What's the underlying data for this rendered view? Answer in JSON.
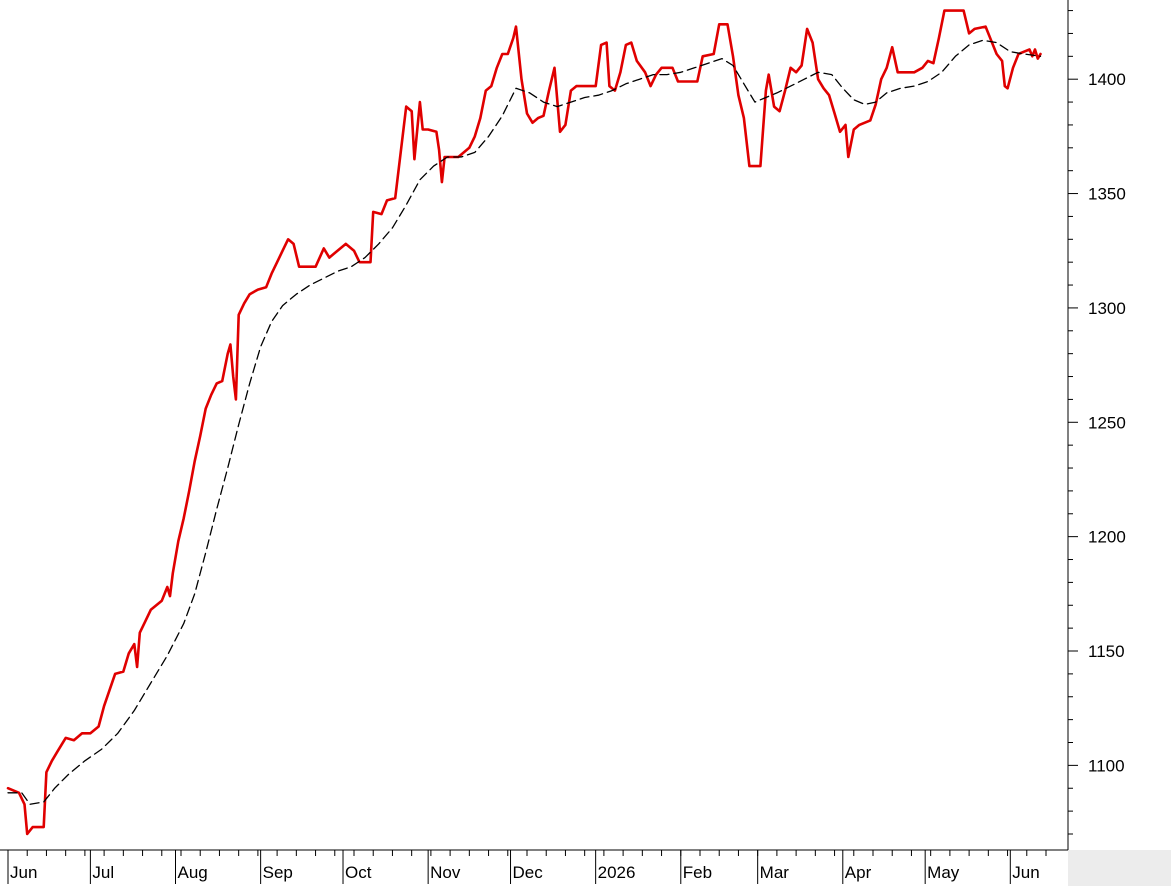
{
  "chart_data": {
    "type": "line",
    "title": "",
    "xlabel": "",
    "ylabel": "",
    "ylim": [
      1063,
      1432
    ],
    "y_ticks": [
      1100,
      1150,
      1200,
      1250,
      1300,
      1350,
      1400
    ],
    "y_axis_side": "right",
    "grid": false,
    "legend": "none",
    "x_range": [
      0,
      378
    ],
    "x_ticks": [
      {
        "x": 0,
        "label": "Jun"
      },
      {
        "x": 30,
        "label": "Jul"
      },
      {
        "x": 61,
        "label": "Aug"
      },
      {
        "x": 92,
        "label": "Sep"
      },
      {
        "x": 122,
        "label": "Oct"
      },
      {
        "x": 153,
        "label": "Nov"
      },
      {
        "x": 183,
        "label": "Dec"
      },
      {
        "x": 214,
        "label": "2026"
      },
      {
        "x": 245,
        "label": "Feb"
      },
      {
        "x": 273,
        "label": "Mar"
      },
      {
        "x": 304,
        "label": "Apr"
      },
      {
        "x": 334,
        "label": "May"
      },
      {
        "x": 365,
        "label": "Jun"
      }
    ],
    "series": [
      {
        "color": "#e00000",
        "style": "solid",
        "points": [
          [
            0,
            1090
          ],
          [
            4,
            1088
          ],
          [
            6,
            1083
          ],
          [
            7,
            1070
          ],
          [
            9,
            1073
          ],
          [
            13,
            1073
          ],
          [
            14,
            1097
          ],
          [
            16,
            1102
          ],
          [
            18,
            1106
          ],
          [
            21,
            1112
          ],
          [
            24,
            1111
          ],
          [
            27,
            1114
          ],
          [
            30,
            1114
          ],
          [
            33,
            1117
          ],
          [
            35,
            1126
          ],
          [
            37,
            1133
          ],
          [
            39,
            1140
          ],
          [
            42,
            1141
          ],
          [
            44,
            1149
          ],
          [
            46,
            1153
          ],
          [
            47,
            1143
          ],
          [
            48,
            1158
          ],
          [
            50,
            1163
          ],
          [
            52,
            1168
          ],
          [
            54,
            1170
          ],
          [
            56,
            1172
          ],
          [
            58,
            1178
          ],
          [
            59,
            1174
          ],
          [
            60,
            1184
          ],
          [
            62,
            1198
          ],
          [
            64,
            1208
          ],
          [
            66,
            1220
          ],
          [
            68,
            1233
          ],
          [
            70,
            1244
          ],
          [
            72,
            1256
          ],
          [
            74,
            1262
          ],
          [
            76,
            1267
          ],
          [
            78,
            1268
          ],
          [
            80,
            1280
          ],
          [
            81,
            1284
          ],
          [
            82,
            1270
          ],
          [
            83,
            1260
          ],
          [
            84,
            1297
          ],
          [
            86,
            1302
          ],
          [
            88,
            1306
          ],
          [
            91,
            1308
          ],
          [
            94,
            1309
          ],
          [
            96,
            1315
          ],
          [
            98,
            1320
          ],
          [
            100,
            1325
          ],
          [
            102,
            1330
          ],
          [
            104,
            1328
          ],
          [
            106,
            1318
          ],
          [
            112,
            1318
          ],
          [
            115,
            1326
          ],
          [
            117,
            1322
          ],
          [
            120,
            1325
          ],
          [
            123,
            1328
          ],
          [
            126,
            1325
          ],
          [
            128,
            1320
          ],
          [
            132,
            1320
          ],
          [
            133,
            1342
          ],
          [
            136,
            1341
          ],
          [
            138,
            1347
          ],
          [
            141,
            1348
          ],
          [
            143,
            1368
          ],
          [
            145,
            1388
          ],
          [
            147,
            1386
          ],
          [
            148,
            1365
          ],
          [
            150,
            1390
          ],
          [
            151,
            1378
          ],
          [
            153,
            1378
          ],
          [
            156,
            1377
          ],
          [
            157,
            1369
          ],
          [
            158,
            1355
          ],
          [
            159,
            1366
          ],
          [
            164,
            1366
          ],
          [
            168,
            1370
          ],
          [
            170,
            1375
          ],
          [
            172,
            1383
          ],
          [
            174,
            1395
          ],
          [
            176,
            1397
          ],
          [
            178,
            1405
          ],
          [
            180,
            1411
          ],
          [
            182,
            1411
          ],
          [
            184,
            1418
          ],
          [
            185,
            1423
          ],
          [
            187,
            1400
          ],
          [
            189,
            1385
          ],
          [
            191,
            1381
          ],
          [
            193,
            1383
          ],
          [
            195,
            1384
          ],
          [
            197,
            1395
          ],
          [
            199,
            1405
          ],
          [
            201,
            1377
          ],
          [
            203,
            1380
          ],
          [
            205,
            1395
          ],
          [
            207,
            1397
          ],
          [
            214,
            1397
          ],
          [
            216,
            1415
          ],
          [
            218,
            1416
          ],
          [
            219,
            1397
          ],
          [
            221,
            1395
          ],
          [
            223,
            1403
          ],
          [
            225,
            1415
          ],
          [
            227,
            1416
          ],
          [
            229,
            1408
          ],
          [
            232,
            1403
          ],
          [
            234,
            1397
          ],
          [
            236,
            1402
          ],
          [
            238,
            1405
          ],
          [
            242,
            1405
          ],
          [
            244,
            1399
          ],
          [
            251,
            1399
          ],
          [
            253,
            1410
          ],
          [
            257,
            1411
          ],
          [
            259,
            1424
          ],
          [
            262,
            1424
          ],
          [
            264,
            1410
          ],
          [
            266,
            1393
          ],
          [
            268,
            1383
          ],
          [
            270,
            1362
          ],
          [
            274,
            1362
          ],
          [
            276,
            1395
          ],
          [
            277,
            1402
          ],
          [
            279,
            1388
          ],
          [
            281,
            1386
          ],
          [
            283,
            1395
          ],
          [
            285,
            1405
          ],
          [
            287,
            1403
          ],
          [
            289,
            1406
          ],
          [
            291,
            1422
          ],
          [
            293,
            1416
          ],
          [
            295,
            1400
          ],
          [
            297,
            1396
          ],
          [
            299,
            1393
          ],
          [
            301,
            1385
          ],
          [
            303,
            1377
          ],
          [
            305,
            1380
          ],
          [
            306,
            1366
          ],
          [
            308,
            1378
          ],
          [
            310,
            1380
          ],
          [
            314,
            1382
          ],
          [
            316,
            1389
          ],
          [
            318,
            1400
          ],
          [
            320,
            1405
          ],
          [
            322,
            1414
          ],
          [
            324,
            1403
          ],
          [
            330,
            1403
          ],
          [
            333,
            1405
          ],
          [
            335,
            1408
          ],
          [
            337,
            1407
          ],
          [
            339,
            1418
          ],
          [
            341,
            1430
          ],
          [
            348,
            1430
          ],
          [
            350,
            1420
          ],
          [
            352,
            1422
          ],
          [
            356,
            1423
          ],
          [
            358,
            1417
          ],
          [
            360,
            1411
          ],
          [
            362,
            1408
          ],
          [
            363,
            1397
          ],
          [
            364,
            1396
          ],
          [
            366,
            1405
          ],
          [
            368,
            1411
          ],
          [
            370,
            1412
          ],
          [
            372,
            1413
          ],
          [
            373,
            1410
          ],
          [
            374,
            1413
          ],
          [
            375,
            1409
          ],
          [
            376,
            1411
          ]
        ]
      },
      {
        "color": "#000000",
        "style": "dashed",
        "points": [
          [
            0,
            1088
          ],
          [
            5,
            1088
          ],
          [
            8,
            1083
          ],
          [
            13,
            1084
          ],
          [
            17,
            1090
          ],
          [
            22,
            1096
          ],
          [
            28,
            1102
          ],
          [
            34,
            1107
          ],
          [
            40,
            1114
          ],
          [
            46,
            1124
          ],
          [
            52,
            1136
          ],
          [
            58,
            1148
          ],
          [
            64,
            1162
          ],
          [
            68,
            1175
          ],
          [
            72,
            1193
          ],
          [
            76,
            1212
          ],
          [
            80,
            1230
          ],
          [
            84,
            1249
          ],
          [
            88,
            1267
          ],
          [
            92,
            1283
          ],
          [
            96,
            1294
          ],
          [
            100,
            1301
          ],
          [
            105,
            1306
          ],
          [
            110,
            1310
          ],
          [
            115,
            1313
          ],
          [
            120,
            1316
          ],
          [
            125,
            1318
          ],
          [
            130,
            1322
          ],
          [
            135,
            1328
          ],
          [
            140,
            1335
          ],
          [
            145,
            1345
          ],
          [
            150,
            1356
          ],
          [
            155,
            1362
          ],
          [
            160,
            1366
          ],
          [
            165,
            1366
          ],
          [
            170,
            1368
          ],
          [
            175,
            1375
          ],
          [
            180,
            1384
          ],
          [
            185,
            1396
          ],
          [
            190,
            1394
          ],
          [
            195,
            1390
          ],
          [
            200,
            1388
          ],
          [
            205,
            1390
          ],
          [
            210,
            1392
          ],
          [
            215,
            1393
          ],
          [
            220,
            1395
          ],
          [
            225,
            1398
          ],
          [
            230,
            1400
          ],
          [
            235,
            1402
          ],
          [
            240,
            1402
          ],
          [
            245,
            1403
          ],
          [
            250,
            1405
          ],
          [
            255,
            1407
          ],
          [
            260,
            1409
          ],
          [
            264,
            1406
          ],
          [
            268,
            1398
          ],
          [
            272,
            1390
          ],
          [
            276,
            1392
          ],
          [
            280,
            1394
          ],
          [
            285,
            1397
          ],
          [
            290,
            1400
          ],
          [
            295,
            1403
          ],
          [
            300,
            1402
          ],
          [
            304,
            1396
          ],
          [
            308,
            1391
          ],
          [
            312,
            1389
          ],
          [
            316,
            1390
          ],
          [
            320,
            1394
          ],
          [
            325,
            1396
          ],
          [
            330,
            1397
          ],
          [
            335,
            1399
          ],
          [
            340,
            1403
          ],
          [
            345,
            1410
          ],
          [
            350,
            1415
          ],
          [
            355,
            1417
          ],
          [
            360,
            1416
          ],
          [
            365,
            1412
          ],
          [
            370,
            1411
          ],
          [
            376,
            1410
          ]
        ]
      }
    ]
  }
}
